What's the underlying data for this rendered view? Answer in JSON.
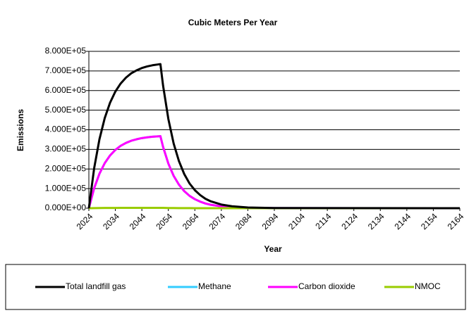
{
  "chart_data": {
    "type": "line",
    "title": "Cubic Meters Per Year",
    "xlabel": "Year",
    "ylabel": "Emissions",
    "x": [
      2024,
      2026,
      2028,
      2030,
      2032,
      2034,
      2036,
      2038,
      2040,
      2042,
      2044,
      2046,
      2048,
      2050,
      2051,
      2052,
      2054,
      2056,
      2058,
      2060,
      2062,
      2064,
      2066,
      2068,
      2070,
      2074,
      2078,
      2084,
      2094,
      2164
    ],
    "series": [
      {
        "name": "Total landfill gas",
        "color": "#000000",
        "values": [
          0,
          204000,
          352000,
          460000,
          538000,
          595000,
          636000,
          666000,
          688000,
          703000,
          715000,
          723000,
          729000,
          733000,
          735000,
          626000,
          455000,
          330000,
          240000,
          174000,
          126000,
          92000,
          67000,
          48000,
          35000,
          18500,
          9800,
          3700,
          760,
          0
        ]
      },
      {
        "name": "Methane",
        "color": "#33ccff",
        "values": [
          0,
          102000,
          176000,
          230000,
          269000,
          297500,
          318000,
          333000,
          344000,
          351500,
          357500,
          361500,
          364500,
          366500,
          367500,
          313000,
          227500,
          165000,
          120000,
          87000,
          63000,
          46000,
          33500,
          24000,
          17500,
          9250,
          4900,
          1850,
          380,
          0
        ]
      },
      {
        "name": "Carbon dioxide",
        "color": "#ff00ff",
        "values": [
          0,
          102000,
          176000,
          230000,
          269000,
          297500,
          318000,
          333000,
          344000,
          351500,
          357500,
          361500,
          364500,
          366500,
          367500,
          313000,
          227500,
          165000,
          120000,
          87000,
          63000,
          46000,
          33500,
          24000,
          17500,
          9250,
          4900,
          1850,
          380,
          0
        ]
      },
      {
        "name": "NMOC",
        "color": "#99cc00",
        "values": [
          0,
          500,
          900,
          1200,
          1300,
          1500,
          1600,
          1700,
          1700,
          1800,
          1800,
          1800,
          1800,
          1800,
          1800,
          1600,
          1100,
          800,
          600,
          400,
          300,
          200,
          200,
          100,
          100,
          0,
          0,
          0,
          0,
          0
        ]
      }
    ],
    "xlim": [
      2024,
      2164
    ],
    "xticks": [
      2024,
      2034,
      2044,
      2054,
      2064,
      2074,
      2084,
      2094,
      2104,
      2114,
      2124,
      2134,
      2144,
      2154,
      2164
    ],
    "ylim": [
      0,
      800000
    ],
    "yticks": [
      {
        "value": 0,
        "label": "0.000E+00"
      },
      {
        "value": 100000,
        "label": "1.000E+05"
      },
      {
        "value": 200000,
        "label": "2.000E+05"
      },
      {
        "value": 300000,
        "label": "3.000E+05"
      },
      {
        "value": 400000,
        "label": "4.000E+05"
      },
      {
        "value": 500000,
        "label": "5.000E+05"
      },
      {
        "value": 600000,
        "label": "6.000E+05"
      },
      {
        "value": 700000,
        "label": "7.000E+05"
      },
      {
        "value": 800000,
        "label": "8.000E+05"
      }
    ],
    "grid": true,
    "legend": "bottom"
  }
}
